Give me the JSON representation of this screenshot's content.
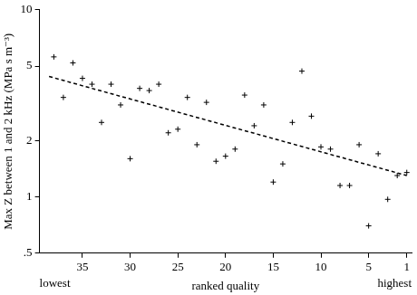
{
  "chart_data": {
    "type": "scatter",
    "x_label": "ranked quality",
    "y_label": "Max Z between 1 and 2 kHz (MPa s m⁻³)",
    "annotations": {
      "left": "lowest",
      "right": "highest"
    },
    "log": "y",
    "grid": false,
    "xlim": [
      39.5,
      0.5
    ],
    "xticks": [
      35,
      30,
      25,
      20,
      15,
      10,
      5,
      1
    ],
    "ylim": [
      0.5,
      10
    ],
    "yticks": [
      {
        "value": 0.5,
        "label": ".5"
      },
      1,
      2,
      5,
      10
    ],
    "series": [
      {
        "type": "scatter",
        "marker": "cross",
        "color": "#000000",
        "x": [
          38,
          37,
          36,
          35,
          34,
          33,
          32,
          31,
          30,
          29,
          28,
          27,
          26,
          25,
          24,
          23,
          22,
          21,
          20,
          19,
          18,
          17,
          16,
          15,
          14,
          13,
          12,
          11,
          10,
          9,
          8,
          7,
          6,
          5,
          4,
          3,
          2,
          1
        ],
        "values": [
          5.6,
          3.4,
          5.2,
          4.3,
          4.0,
          2.5,
          4.0,
          3.1,
          1.6,
          3.8,
          3.7,
          4.0,
          2.2,
          2.3,
          3.4,
          1.9,
          3.2,
          1.55,
          1.65,
          1.8,
          3.5,
          2.4,
          3.1,
          1.2,
          1.5,
          2.5,
          4.7,
          2.7,
          1.85,
          1.8,
          1.15,
          1.15,
          1.9,
          0.7,
          1.7,
          0.97,
          1.3,
          1.35
        ]
      },
      {
        "type": "line",
        "line_style": "dashed",
        "color": "#000000",
        "x": [
          38.5,
          1
        ],
        "values": [
          4.4,
          1.3
        ]
      }
    ]
  }
}
